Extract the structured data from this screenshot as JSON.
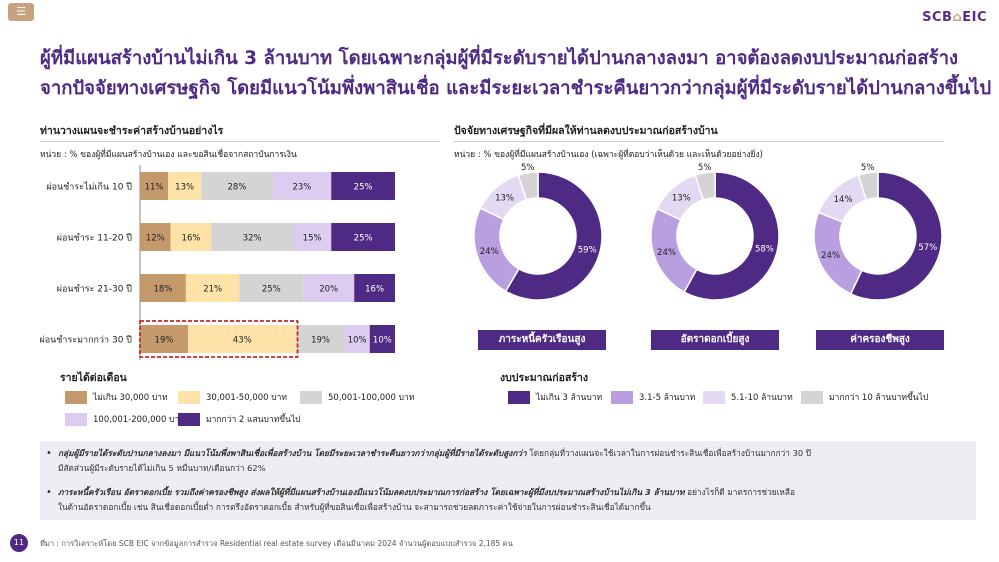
{
  "header": {
    "brand_a": "SCB",
    "brand_b": "EIC",
    "menu_icon": "menu-icon"
  },
  "title_lines": [
    "ผู้ที่มีแผนสร้างบ้านไม่เกิน 3 ล้านบาท โดยเฉพาะกลุ่มผู้ที่มีระดับรายได้ปานกลางลงมา อาจต้องลดงบประมาณก่อสร้าง",
    "จากปัจจัยทางเศรษฐกิจ โดยมีแนวโน้มพึ่งพาสินเชื่อ และมีระยะเวลาชำระคืนยาวกว่ากลุ่มผู้ที่มีระดับรายได้ปานกลางขึ้นไป"
  ],
  "left_section": {
    "title": "ท่านวางแผนจะชำระค่าสร้างบ้านอย่างไร",
    "unit": "หน่วย : % ของผู้ที่มีแผนสร้างบ้านเอง และขอสินเชื่อจากสถาบันการเงิน"
  },
  "right_section": {
    "title": "ปัจจัยทางเศรษฐกิจที่มีผลให้ท่านลดงบประมาณก่อสร้างบ้าน",
    "unit": "หน่วย : % ของผู้ที่มีแผนสร้างบ้านเอง (เฉพาะผู้ที่ตอบว่าเห็นด้วย และเห็นด้วยอย่างยิ่ง)"
  },
  "chart_data": [
    {
      "type": "bar",
      "orientation": "horizontal",
      "stacked": true,
      "categories": [
        "ผ่อนชำระไม่เกิน 10 ปี",
        "ผ่อนชำระ 11-20 ปี",
        "ผ่อนชำระ 21-30 ปี",
        "ผ่อนชำระมากกว่า 30 ปี"
      ],
      "series": [
        {
          "name": "ไม่เกิน 30,000 บาท",
          "color": "#c49a6c",
          "values": [
            11,
            12,
            18,
            19
          ]
        },
        {
          "name": "30,001-50,000 บาท",
          "color": "#fde3a7",
          "values": [
            13,
            16,
            21,
            43
          ]
        },
        {
          "name": "50,001-100,000 บาท",
          "color": "#d4d4d4",
          "values": [
            28,
            32,
            25,
            19
          ]
        },
        {
          "name": "100,001-200,000 บาท",
          "color": "#dccdf0",
          "values": [
            23,
            15,
            20,
            10
          ]
        },
        {
          "name": "มากกว่า 2 แสนบาทขึ้นไป",
          "color": "#4e2a84",
          "values": [
            25,
            25,
            16,
            10
          ]
        }
      ],
      "data_labels": [
        [
          "11%",
          "13%",
          "28%",
          "23%",
          "25%"
        ],
        [
          "12%",
          "16%",
          "32%",
          "15%",
          "25%"
        ],
        [
          "18%",
          "21%",
          "25%",
          "20%",
          "16%"
        ],
        [
          "19%",
          "43%",
          "19%",
          "10%",
          "10%"
        ]
      ],
      "highlight_category": "ผ่อนชำระมากกว่า 30 ปี",
      "legend_title": "รายได้ต่อเดือน",
      "legend_position": "bottom"
    },
    {
      "type": "pie",
      "donut": true,
      "legend_title": "งบประมาณก่อสร้าง",
      "legend_position": "bottom",
      "categories": [
        "ไม่เกิน 3 ล้านบาท",
        "3.1-5 ล้านบาท",
        "5.1-10 ล้านบาท",
        "มากกว่า 10 ล้านบาทขึ้นไป"
      ],
      "colors": [
        "#4e2a84",
        "#b99ee0",
        "#e3d9f3",
        "#d4d4d4"
      ],
      "charts": [
        {
          "name": "ภาระหนี้ครัวเรือนสูง",
          "values": [
            59,
            24,
            13,
            5
          ],
          "labels": [
            "59%",
            "24%",
            "13%",
            "5%"
          ]
        },
        {
          "name": "อัตราดอกเบี้ยสูง",
          "values": [
            58,
            24,
            13,
            5
          ],
          "labels": [
            "58%",
            "24%",
            "13%",
            "5%"
          ]
        },
        {
          "name": "ค่าครองชีพสูง",
          "values": [
            57,
            24,
            14,
            5
          ],
          "labels": [
            "57%",
            "24%",
            "14%",
            "5%"
          ]
        }
      ]
    }
  ],
  "notes": [
    {
      "bold": "กลุ่มผู้มีรายได้ระดับปานกลางลงมา มีแนวโน้มพึ่งพาสินเชื่อเพื่อสร้างบ้าน โดยมีระยะเวลาชำระคืนยาวกว่ากลุ่มผู้ที่มีรายได้ระดับสูงกว่า",
      "line1": " โดยกลุ่มที่วางแผนจะใช้เวลาในการผ่อนชำระสินเชื่อเพื่อสร้างบ้านมากกว่า 30 ปี",
      "line2": "มีสัดส่วนผู้มีระดับรายได้ไม่เกิน 5 หมื่นบาท/เดือนกว่า 62%"
    },
    {
      "bold": "ภาระหนี้ครัวเรือน อัตราดอกเบี้ย รวมถึงค่าครองชีพสูง ส่งผลให้ผู้ที่มีแผนสร้างบ้านเองมีแนวโน้มลดงบประมาณการก่อสร้าง โดยเฉพาะผู้ที่มีงบประมาณสร้างบ้านไม่เกิน 3 ล้านบาท",
      "line1": " อย่างไรก็ดี มาตรการช่วยเหลือ",
      "line2": "ในด้านอัตราดอกเบี้ย เช่น สินเชื่อดอกเบี้ยต่ำ การตรึงอัตราดอกเบี้ย สำหรับผู้ที่ขอสินเชื่อเพื่อสร้างบ้าน จะสามารถช่วยลดภาระค่าใช้จ่ายในการผ่อนชำระสินเชื่อได้มากขึ้น"
    }
  ],
  "footer": {
    "page": "11",
    "source": "ที่มา : การวิเคราะห์โดย SCB EIC จากข้อมูลการสำรวจ Residential real estate survey เดือนมีนาคม 2024 จำนวนผู้ตอบแบบสำรวจ 2,185 คน"
  }
}
